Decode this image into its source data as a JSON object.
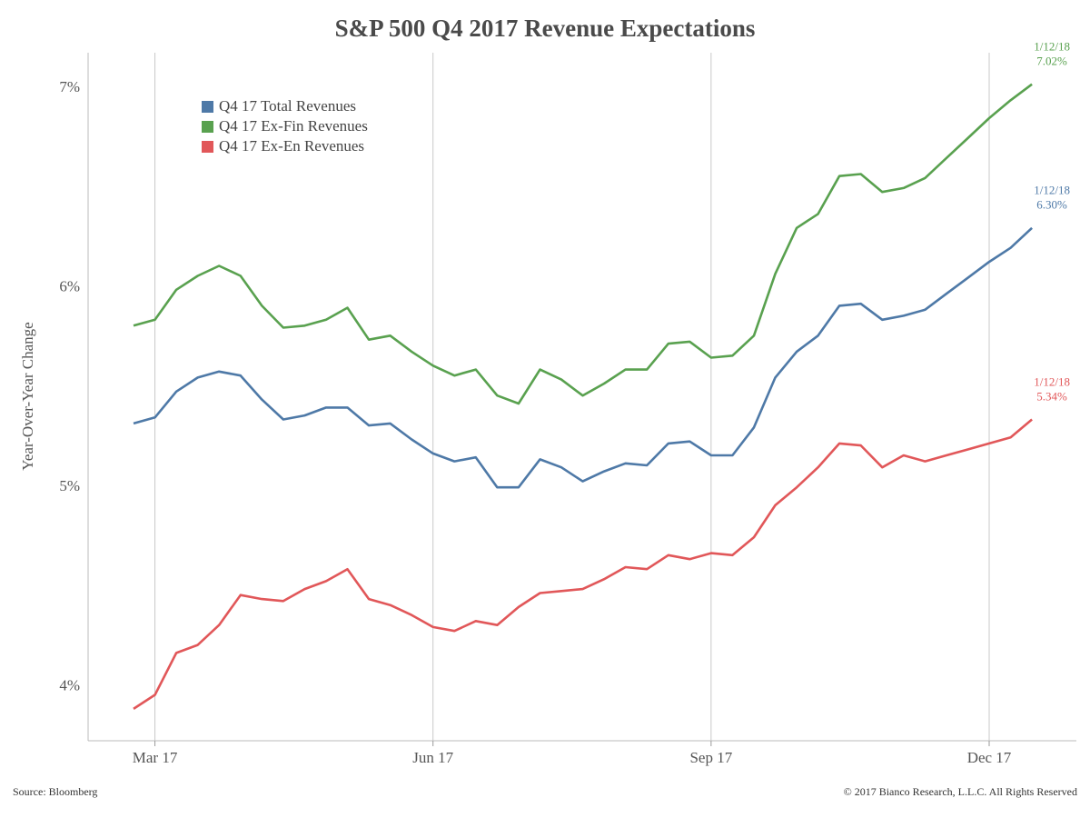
{
  "chart_data": {
    "type": "line",
    "title": "S&P 500 Q4 2017 Revenue Expectations",
    "y_label": "Year-Over-Year Change",
    "source": "Source: Bloomberg",
    "copyright": "© 2017 Bianco Research, L.L.C. All Rights Reserved",
    "categories": [
      null,
      "Mar 17",
      null,
      null,
      null,
      null,
      null,
      null,
      null,
      null,
      null,
      null,
      null,
      null,
      "Jun 17",
      null,
      null,
      null,
      null,
      null,
      null,
      null,
      null,
      null,
      null,
      null,
      null,
      "Sep 17",
      null,
      null,
      null,
      null,
      null,
      null,
      null,
      null,
      null,
      null,
      null,
      null,
      "Dec 17",
      null,
      null
    ],
    "ylim": [
      3.73,
      7.26
    ],
    "yticks": [
      {
        "value": 4,
        "label": "4%"
      },
      {
        "value": 5,
        "label": "5%"
      },
      {
        "value": 6,
        "label": "6%"
      },
      {
        "value": 7,
        "label": "7%"
      }
    ],
    "grid": true,
    "series": [
      {
        "name": "Q4 17 Total Revenues",
        "color": "#4e79a7",
        "date_label": "1/12/18",
        "values": [
          5.32,
          5.35,
          5.48,
          5.55,
          5.58,
          5.56,
          5.44,
          5.34,
          5.36,
          5.4,
          5.4,
          5.31,
          5.32,
          5.24,
          5.17,
          5.13,
          5.15,
          5.0,
          5.0,
          5.14,
          5.1,
          5.03,
          5.08,
          5.12,
          5.11,
          5.22,
          5.23,
          5.16,
          5.16,
          5.3,
          5.55,
          5.68,
          5.76,
          5.91,
          5.92,
          5.84,
          5.86,
          5.89,
          5.97,
          6.05,
          6.13,
          6.2,
          6.3
        ],
        "value_labels": [
          null,
          null,
          null,
          null,
          null,
          null,
          null,
          null,
          null,
          null,
          null,
          null,
          null,
          null,
          null,
          null,
          null,
          null,
          null,
          null,
          null,
          null,
          null,
          null,
          null,
          null,
          null,
          null,
          null,
          null,
          null,
          null,
          null,
          null,
          null,
          null,
          null,
          null,
          null,
          null,
          null,
          null,
          "6.30%"
        ]
      },
      {
        "name": "Q4 17 Ex-Fin Revenues",
        "color": "#59a14f",
        "date_label": "1/12/18",
        "values": [
          5.81,
          5.84,
          5.99,
          6.06,
          6.11,
          6.06,
          5.91,
          5.8,
          5.81,
          5.84,
          5.9,
          5.74,
          5.76,
          5.68,
          5.61,
          5.56,
          5.59,
          5.46,
          5.42,
          5.59,
          5.54,
          5.46,
          5.52,
          5.59,
          5.59,
          5.72,
          5.73,
          5.65,
          5.66,
          5.76,
          6.07,
          6.3,
          6.37,
          6.56,
          6.57,
          6.48,
          6.5,
          6.55,
          6.65,
          6.75,
          6.85,
          6.94,
          7.02
        ],
        "value_labels": [
          null,
          null,
          null,
          null,
          null,
          null,
          null,
          null,
          null,
          null,
          null,
          null,
          null,
          null,
          null,
          null,
          null,
          null,
          null,
          null,
          null,
          null,
          null,
          null,
          null,
          null,
          null,
          null,
          null,
          null,
          null,
          null,
          null,
          null,
          null,
          null,
          null,
          null,
          null,
          null,
          null,
          null,
          "7.02%"
        ]
      },
      {
        "name": "Q4 17 Ex-En Revenues",
        "color": "#e15759",
        "date_label": "1/12/18",
        "values": [
          3.89,
          3.96,
          4.17,
          4.21,
          4.31,
          4.46,
          4.44,
          4.43,
          4.49,
          4.53,
          4.59,
          4.44,
          4.41,
          4.36,
          4.3,
          4.28,
          4.33,
          4.31,
          4.4,
          4.47,
          4.48,
          4.49,
          4.54,
          4.6,
          4.59,
          4.66,
          4.64,
          4.67,
          4.66,
          4.75,
          4.91,
          5.0,
          5.1,
          5.22,
          5.21,
          5.1,
          5.16,
          5.13,
          5.16,
          5.19,
          5.22,
          5.25,
          5.34
        ],
        "value_labels": [
          null,
          null,
          null,
          null,
          null,
          null,
          null,
          null,
          null,
          null,
          null,
          null,
          null,
          null,
          null,
          null,
          null,
          null,
          null,
          null,
          null,
          null,
          null,
          null,
          null,
          null,
          null,
          null,
          null,
          null,
          null,
          null,
          null,
          null,
          null,
          null,
          null,
          null,
          null,
          null,
          null,
          null,
          "5.34%"
        ]
      }
    ]
  }
}
